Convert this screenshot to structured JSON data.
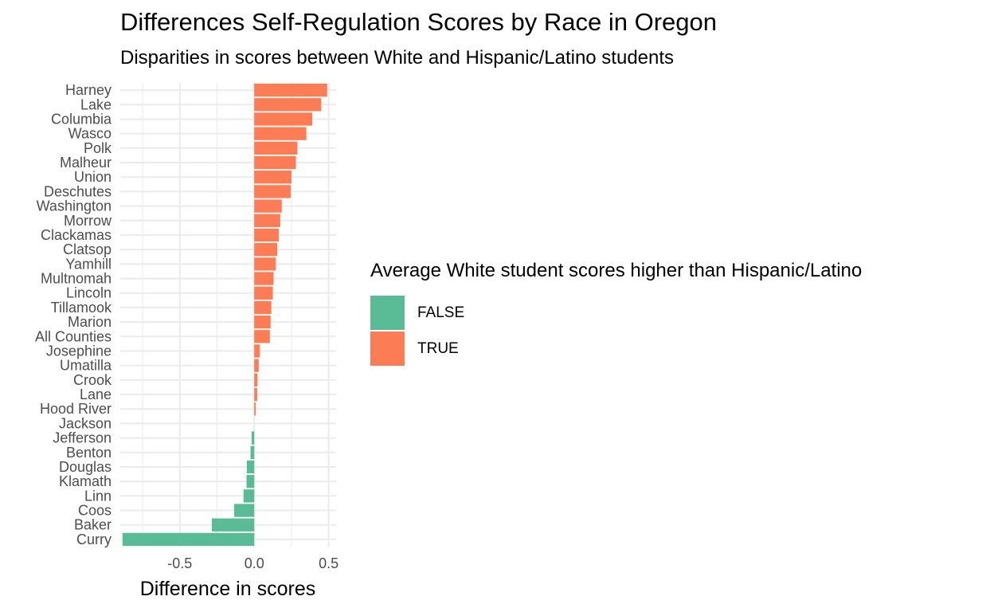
{
  "chart_data": {
    "type": "bar",
    "orientation": "horizontal",
    "title": "Differences Self-Regulation Scores by Race in Oregon",
    "subtitle": "Disparities in scores between White and Hispanic/Latino students",
    "xlabel": "Difference in scores",
    "ylabel": "",
    "xlim": [
      -0.9,
      0.55
    ],
    "x_ticks": [
      -0.5,
      0.0,
      0.5
    ],
    "x_tick_labels": [
      "-0.5",
      "0.0",
      "0.5"
    ],
    "grid": true,
    "categories": [
      "Harney",
      "Lake",
      "Columbia",
      "Wasco",
      "Polk",
      "Malheur",
      "Union",
      "Deschutes",
      "Washington",
      "Morrow",
      "Clackamas",
      "Clatsop",
      "Yamhill",
      "Multnomah",
      "Lincoln",
      "Tillamook",
      "Marion",
      "All Counties",
      "Josephine",
      "Umatilla",
      "Crook",
      "Lane",
      "Hood River",
      "Jackson",
      "Jefferson",
      "Benton",
      "Douglas",
      "Klamath",
      "Linn",
      "Coos",
      "Baker",
      "Curry"
    ],
    "values": [
      0.49,
      0.45,
      0.39,
      0.35,
      0.29,
      0.28,
      0.25,
      0.245,
      0.185,
      0.175,
      0.165,
      0.155,
      0.145,
      0.13,
      0.125,
      0.115,
      0.11,
      0.105,
      0.038,
      0.03,
      0.022,
      0.02,
      0.01,
      0.0,
      -0.018,
      -0.025,
      -0.05,
      -0.052,
      -0.072,
      -0.135,
      -0.285,
      -0.885
    ],
    "legend": {
      "title": "Average White student scores higher than Hispanic/Latino",
      "placement": "right",
      "entries": [
        {
          "label": "FALSE",
          "color": "#5ABC96"
        },
        {
          "label": "TRUE",
          "color": "#FC7D55"
        }
      ]
    }
  }
}
